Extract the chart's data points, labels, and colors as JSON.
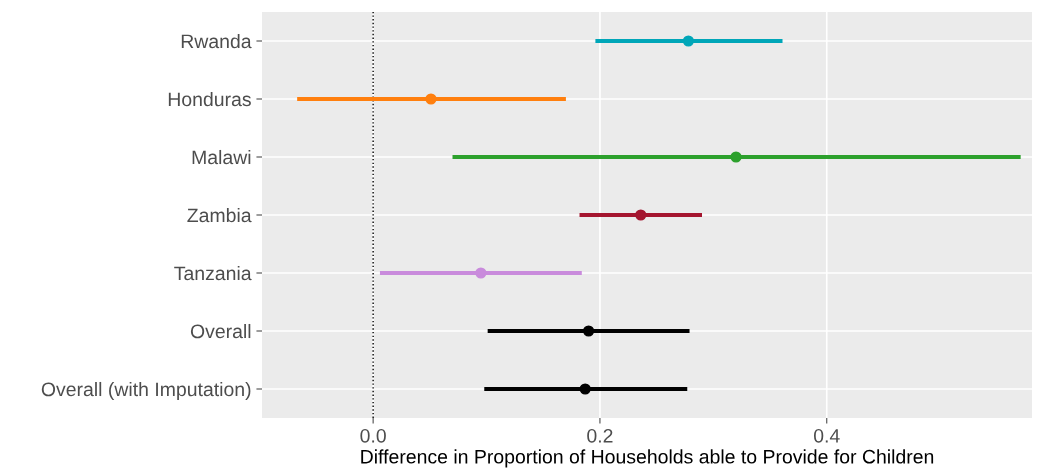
{
  "chart_data": {
    "type": "scatter",
    "orientation": "horizontal",
    "categories": [
      "Rwanda",
      "Honduras",
      "Malawi",
      "Zambia",
      "Tanzania",
      "Overall",
      "Overall (with Imputation)"
    ],
    "values": [
      0.278,
      0.051,
      0.32,
      0.236,
      0.095,
      0.19,
      0.187
    ],
    "errors": [
      [
        0.196,
        0.361
      ],
      [
        -0.067,
        0.17
      ],
      [
        0.07,
        0.571
      ],
      [
        0.182,
        0.29
      ],
      [
        0.006,
        0.184
      ],
      [
        0.101,
        0.279
      ],
      [
        0.098,
        0.277
      ]
    ],
    "colors": [
      "#00a6b8",
      "#ff7f0e",
      "#2ca02c",
      "#a4152f",
      "#c98bdc",
      "#000000",
      "#000000"
    ],
    "xlabel": "Difference in Proportion of Households able to Provide for Children",
    "xlim": [
      -0.098,
      0.581
    ],
    "xticks": [
      {
        "value": 0,
        "label": "0.0"
      },
      {
        "value": 0.2,
        "label": "0.2"
      },
      {
        "value": 0.4,
        "label": "0.4"
      }
    ],
    "ref_lines": [
      {
        "axis": "x",
        "value": 0,
        "color": "#000000",
        "line_style": "dotted"
      }
    ],
    "grid": true,
    "marker": "circle"
  }
}
